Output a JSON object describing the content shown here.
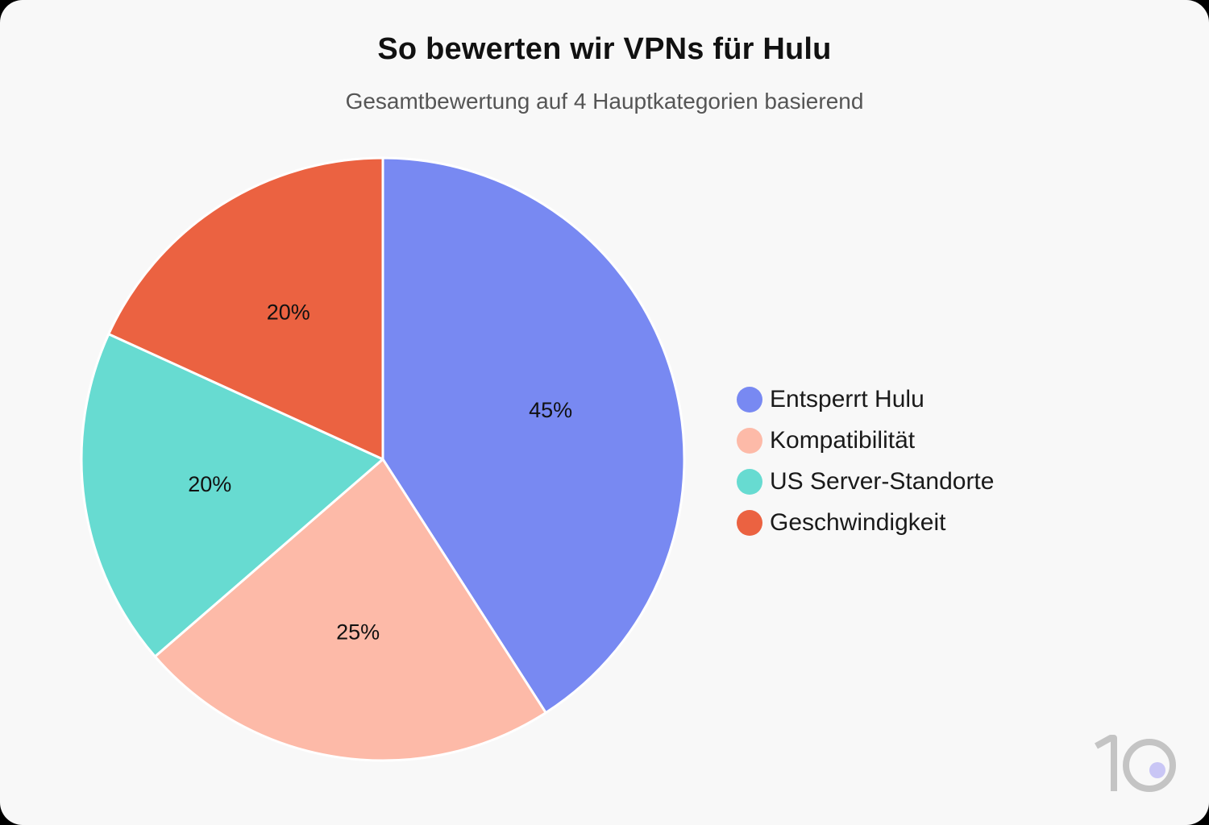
{
  "chart_data": {
    "type": "pie",
    "title": "So bewerten wir VPNs für Hulu",
    "subtitle": "Gesamtbewertung auf 4 Hauptkategorien basierend",
    "slices": [
      {
        "label": "Entsperrt Hulu",
        "value": 45,
        "display": "45%",
        "color": "#7889f2"
      },
      {
        "label": "Kompatibilität",
        "value": 25,
        "display": "25%",
        "color": "#fdbaa8"
      },
      {
        "label": "US Server-Standorte",
        "value": 20,
        "display": "20%",
        "color": "#67dbd1"
      },
      {
        "label": "Geschwindigkeit",
        "value": 20,
        "display": "20%",
        "color": "#eb6241"
      }
    ],
    "legend_position": "right"
  },
  "branding": {
    "logo_icon": "ten-logo-icon",
    "logo_color": "#c4c4c4",
    "logo_dot_color": "#c9c6f5"
  }
}
